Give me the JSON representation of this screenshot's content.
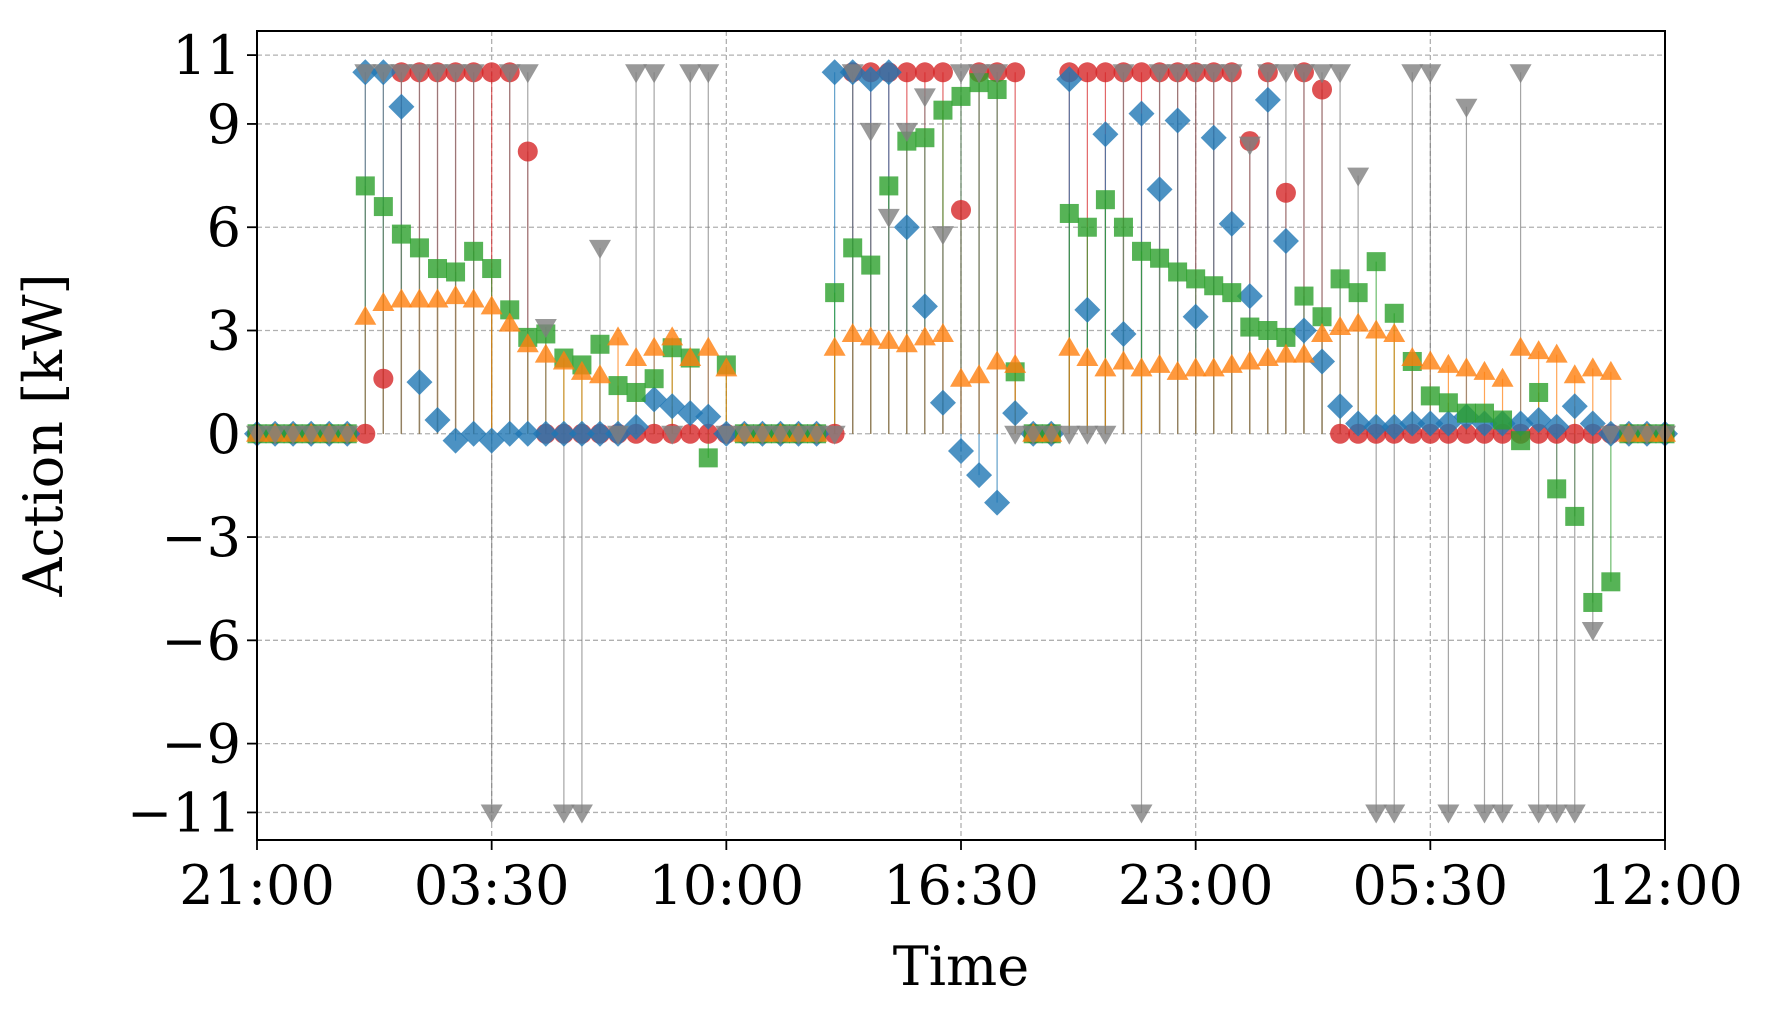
{
  "chart_data": {
    "type": "stem",
    "xlabel": "Time",
    "ylabel": "Action [kW]",
    "x": [
      0,
      0.5,
      1,
      1.5,
      2,
      2.5,
      3,
      3.5,
      4,
      4.5,
      5,
      5.5,
      6,
      6.5,
      7,
      7.5,
      8,
      8.5,
      9,
      9.5,
      10,
      10.5,
      11,
      11.5,
      12,
      12.5,
      13,
      13.5,
      14,
      14.5,
      15,
      15.5,
      16,
      16.5,
      17,
      17.5,
      18,
      18.5,
      19,
      19.5,
      20,
      20.5,
      21,
      21.5,
      22,
      22.5,
      23,
      23.5,
      24,
      24.5,
      25,
      25.5,
      26,
      26.5,
      27,
      27.5,
      28,
      28.5,
      29,
      29.5,
      30,
      30.5,
      31,
      31.5,
      32,
      32.5,
      33,
      33.5,
      34,
      34.5,
      35,
      35.5,
      36,
      36.5,
      37,
      37.5,
      38,
      38.5,
      39
    ],
    "xlim": [
      0,
      39
    ],
    "xticks": [
      {
        "value": 0,
        "label": "21:00"
      },
      {
        "value": 6.5,
        "label": "03:30"
      },
      {
        "value": 13,
        "label": "10:00"
      },
      {
        "value": 19.5,
        "label": "16:30"
      },
      {
        "value": 26,
        "label": "23:00"
      },
      {
        "value": 32.5,
        "label": "05:30"
      },
      {
        "value": 39,
        "label": "12:00"
      }
    ],
    "ylim": [
      -11.8,
      11.7
    ],
    "yticks": [
      11,
      9,
      6,
      3,
      0,
      {
        "value": -3,
        "label": "−3"
      },
      {
        "value": -6,
        "label": "−6"
      },
      {
        "value": -9,
        "label": "−9"
      },
      {
        "value": -11,
        "label": "−11"
      }
    ],
    "grid": true,
    "series": [
      {
        "color": "#d62728",
        "marker": "circle",
        "values": [
          0,
          0,
          0,
          0,
          0,
          0,
          0,
          1.6,
          10.5,
          10.5,
          10.5,
          10.5,
          10.5,
          10.5,
          10.5,
          8.2,
          0,
          0,
          0,
          0,
          0,
          0,
          0,
          0,
          0,
          0,
          0,
          0,
          0,
          0,
          0,
          0,
          0,
          10.5,
          10.5,
          10.5,
          10.5,
          10.5,
          10.5,
          6.5,
          10.5,
          10.5,
          10.5,
          0,
          0,
          10.5,
          10.5,
          10.5,
          10.5,
          10.5,
          10.5,
          10.5,
          10.5,
          10.5,
          10.5,
          8.5,
          10.5,
          7.0,
          10.5,
          10.0,
          0,
          0,
          0,
          0,
          0,
          0,
          0,
          0,
          0,
          0,
          0,
          0,
          0,
          0,
          0,
          0,
          0,
          0,
          0
        ]
      },
      {
        "color": "#1f77b4",
        "marker": "diamond",
        "values": [
          0,
          0,
          0,
          0,
          0,
          0,
          10.5,
          10.5,
          9.5,
          1.5,
          0.4,
          -0.2,
          0,
          -0.2,
          0,
          0,
          0,
          0,
          0,
          0,
          0,
          0.2,
          1.0,
          0.8,
          0.6,
          0.5,
          0,
          0,
          0,
          0,
          0,
          0,
          10.5,
          10.5,
          10.3,
          10.5,
          6.0,
          3.7,
          0.9,
          -0.5,
          -1.2,
          -2.0,
          0.6,
          0,
          0,
          10.3,
          3.6,
          8.7,
          2.9,
          9.3,
          7.1,
          9.1,
          3.4,
          8.6,
          6.1,
          4.0,
          9.7,
          5.6,
          3.0,
          2.1,
          0.8,
          0.3,
          0.2,
          0.2,
          0.3,
          0.3,
          0.3,
          0.5,
          0.3,
          0.3,
          0.3,
          0.4,
          0.2,
          0.8,
          0.3,
          0,
          0,
          0,
          0
        ]
      },
      {
        "color": "#2ca02c",
        "marker": "square",
        "values": [
          0,
          0,
          0,
          0,
          0,
          0,
          7.2,
          6.6,
          5.8,
          5.4,
          4.8,
          4.7,
          5.3,
          4.8,
          3.6,
          2.8,
          2.9,
          2.2,
          2.0,
          2.6,
          1.4,
          1.2,
          1.6,
          2.5,
          2.2,
          -0.7,
          2.0,
          0,
          0,
          0,
          0,
          0,
          4.1,
          5.4,
          4.9,
          7.2,
          8.5,
          8.6,
          9.4,
          9.8,
          10.2,
          10.0,
          1.8,
          0,
          0,
          6.4,
          6.0,
          6.8,
          6.0,
          5.3,
          5.1,
          4.7,
          4.5,
          4.3,
          4.1,
          3.1,
          3.0,
          2.8,
          4.0,
          3.4,
          4.5,
          4.1,
          5.0,
          3.5,
          2.1,
          1.1,
          0.9,
          0.6,
          0.6,
          0.4,
          -0.2,
          1.2,
          -1.6,
          -2.4,
          -4.9,
          -4.3,
          0,
          0,
          0
        ]
      },
      {
        "color": "#ff7f0e",
        "marker": "triangle-up",
        "values": [
          0,
          0,
          0,
          0,
          0,
          0,
          3.4,
          3.8,
          3.9,
          3.9,
          3.9,
          4.0,
          3.9,
          3.7,
          3.2,
          2.6,
          2.3,
          2.1,
          1.8,
          1.7,
          2.8,
          2.2,
          2.5,
          2.8,
          2.2,
          2.5,
          1.9,
          0,
          0,
          0,
          0,
          0,
          2.5,
          2.9,
          2.8,
          2.7,
          2.6,
          2.8,
          2.9,
          1.6,
          1.7,
          2.1,
          2.0,
          0,
          0,
          2.5,
          2.2,
          1.9,
          2.1,
          1.9,
          2.0,
          1.8,
          1.9,
          1.9,
          2.0,
          2.1,
          2.2,
          2.3,
          2.3,
          2.9,
          3.1,
          3.2,
          3.0,
          2.9,
          2.2,
          2.1,
          2.0,
          1.9,
          1.8,
          1.6,
          2.5,
          2.4,
          2.3,
          1.7,
          1.9,
          1.8,
          0,
          0,
          0
        ]
      },
      {
        "color": "#7f7f7f",
        "marker": "triangle-down",
        "values": [
          0,
          0,
          0,
          0,
          0,
          0,
          10.5,
          10.5,
          10.5,
          10.5,
          10.5,
          10.5,
          10.5,
          -11,
          10.5,
          10.5,
          3.1,
          -11,
          -11,
          5.4,
          0,
          10.5,
          10.5,
          0,
          10.5,
          10.5,
          0,
          0,
          0,
          0,
          0,
          0,
          0,
          10.5,
          8.8,
          6.3,
          8.8,
          9.8,
          5.8,
          10.5,
          10.5,
          10.5,
          0,
          0,
          0,
          0,
          0,
          0,
          10.5,
          -11,
          10.5,
          10.5,
          10.5,
          10.5,
          10.5,
          8.4,
          10.5,
          10.5,
          10.5,
          10.5,
          10.5,
          7.5,
          -11,
          -11,
          10.5,
          10.5,
          -11,
          9.5,
          -11,
          -11,
          10.5,
          -11,
          -11,
          -11,
          -5.7,
          0,
          0,
          0,
          0
        ]
      }
    ]
  }
}
